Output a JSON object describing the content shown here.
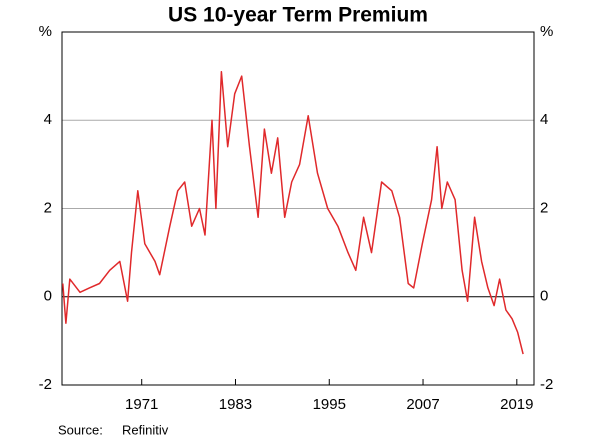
{
  "chart_data": {
    "type": "line",
    "title": "US 10-year Term Premium",
    "source_label": "Source:",
    "source": "Refinitiv",
    "x": [
      1961.4,
      1961.8,
      1962.3,
      1963.6,
      1964.8,
      1966.1,
      1967.4,
      1968.7,
      1969.7,
      1970.2,
      1971.0,
      1971.9,
      1973.2,
      1973.8,
      1975.1,
      1976.1,
      1977.0,
      1977.9,
      1978.9,
      1979.6,
      1980.5,
      1981.0,
      1981.7,
      1982.5,
      1983.4,
      1984.3,
      1985.3,
      1986.4,
      1987.2,
      1988.1,
      1988.9,
      1989.8,
      1990.7,
      1991.7,
      1992.8,
      1994.0,
      1995.3,
      1996.6,
      1997.9,
      1998.9,
      1999.9,
      2000.9,
      2002.2,
      2003.5,
      2004.5,
      2005.6,
      2006.3,
      2007.4,
      2008.6,
      2009.3,
      2009.9,
      2010.6,
      2011.6,
      2012.5,
      2013.2,
      2014.1,
      2015.0,
      2015.8,
      2016.6,
      2017.3,
      2018.1,
      2018.9,
      2019.6,
      2020.3
    ],
    "series": [
      {
        "color": "#e0292b",
        "values": [
          0.3,
          -0.6,
          0.4,
          0.1,
          0.2,
          0.3,
          0.6,
          0.8,
          -0.1,
          1.0,
          2.4,
          1.2,
          0.8,
          0.5,
          1.6,
          2.4,
          2.6,
          1.6,
          2.0,
          1.4,
          4.0,
          2.0,
          5.1,
          3.4,
          4.6,
          5.0,
          3.4,
          1.8,
          3.8,
          2.8,
          3.6,
          1.8,
          2.6,
          3.0,
          4.1,
          2.8,
          2.0,
          1.6,
          1.0,
          0.6,
          1.8,
          1.0,
          2.6,
          2.4,
          1.8,
          0.3,
          0.2,
          1.2,
          2.2,
          3.4,
          2.0,
          2.6,
          2.2,
          0.6,
          -0.1,
          1.8,
          0.8,
          0.2,
          -0.2,
          0.4,
          -0.3,
          -0.5,
          -0.8,
          -1.3
        ]
      }
    ],
    "xlim": [
      1961.3,
      2021.7
    ],
    "xticks": [
      {
        "value": 1971.5,
        "label": "1971"
      },
      {
        "value": 1983.5,
        "label": "1983"
      },
      {
        "value": 1995.5,
        "label": "1995"
      },
      {
        "value": 2007.5,
        "label": "2007"
      },
      {
        "value": 2019.5,
        "label": "2019"
      }
    ],
    "ylim": [
      -2,
      6
    ],
    "yticks": [
      -2,
      0,
      2,
      4,
      {
        "value": 6,
        "label": "%"
      }
    ],
    "grid": true
  }
}
